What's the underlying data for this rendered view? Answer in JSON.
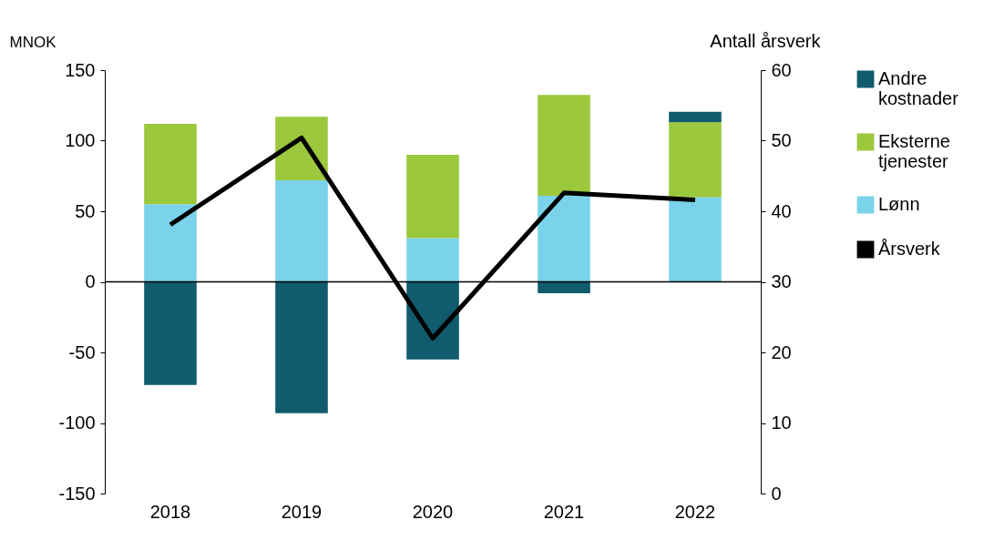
{
  "chart_data": {
    "type": "bar",
    "stacked": true,
    "ylabel": "MNOK",
    "y2label": "Antall årsverk",
    "categories": [
      "2018",
      "2019",
      "2020",
      "2021",
      "2022"
    ],
    "series": [
      {
        "name": "Lønn",
        "color": "#7ad3eb",
        "values": [
          55,
          72,
          31,
          61,
          60
        ]
      },
      {
        "name": "Eksterne tjenester",
        "color": "#9bc83c",
        "values": [
          57,
          45,
          59,
          71.5,
          53
        ]
      },
      {
        "name": "Andre kostnader",
        "color": "#115b6e",
        "values": [
          -73,
          -93,
          -55,
          -8,
          7.5
        ]
      },
      {
        "name": "Årsverk",
        "type": "line",
        "axis": "y2",
        "color": "#000000",
        "values": [
          38.1,
          50.4,
          22,
          42.6,
          41.6
        ]
      }
    ],
    "ylim": [
      -150,
      150
    ],
    "yticks": [
      -150,
      -100,
      -50,
      0,
      50,
      100,
      150
    ],
    "y2lim": [
      0,
      60
    ],
    "y2ticks": [
      0,
      10,
      20,
      30,
      40,
      50,
      60
    ],
    "ref_lines": [
      {
        "axis": "y",
        "value": 0,
        "color": "#000000"
      }
    ],
    "grid": false,
    "legend": "right",
    "line_style": "solid",
    "marker": "none"
  }
}
